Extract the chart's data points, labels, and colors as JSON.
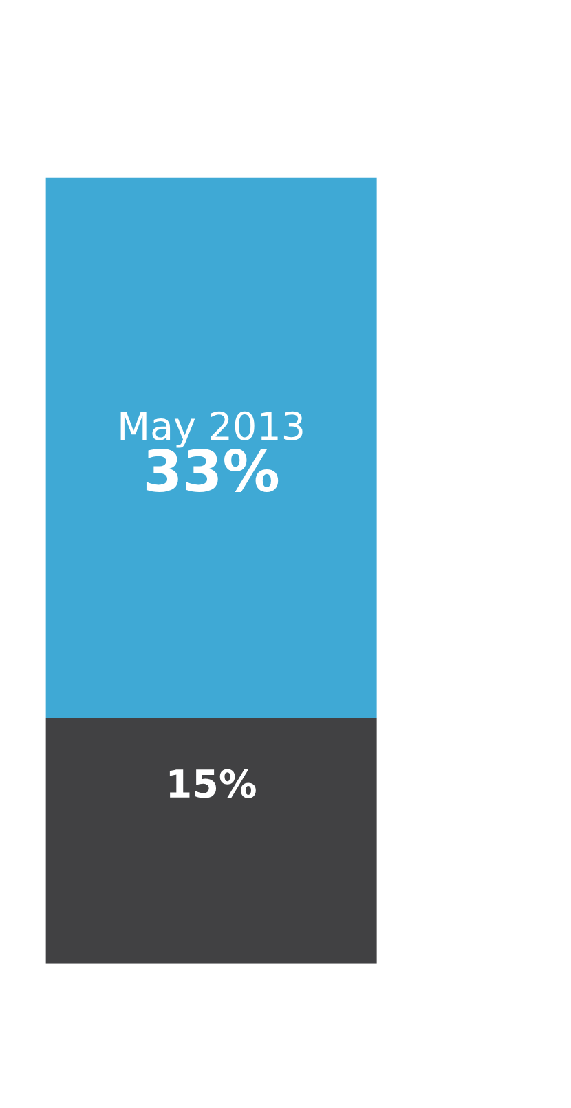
{
  "chart_data": {
    "type": "bar",
    "stacked": true,
    "categories": [
      null
    ],
    "series": [
      {
        "color": "#414143",
        "values": [
          15
        ],
        "value_labels": [
          "15%"
        ]
      },
      {
        "name": "May 2013",
        "color": "#3fa9d5",
        "values": [
          33
        ],
        "value_labels": [
          "33%"
        ]
      }
    ]
  }
}
